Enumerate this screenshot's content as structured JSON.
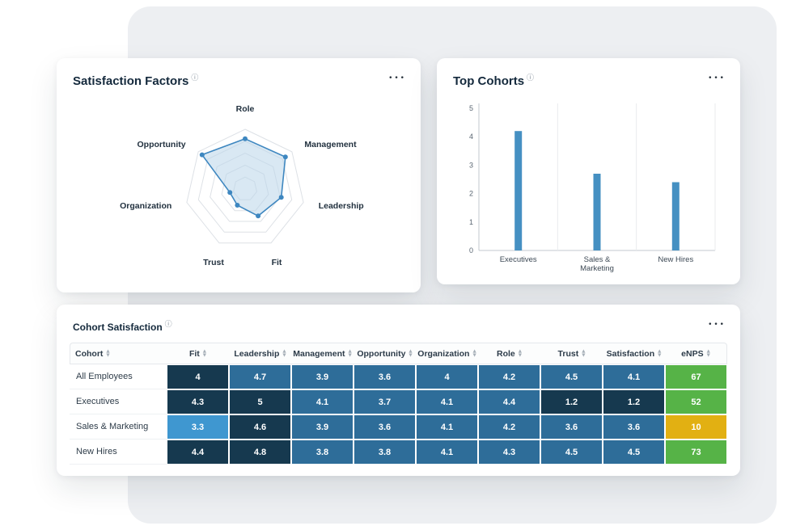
{
  "ui": {
    "info_icon": "ⓘ",
    "menu_icon": "•••",
    "sort_asc": "▲",
    "sort_desc": "▼"
  },
  "colors": {
    "page_bg": "#ffffff",
    "backdrop_bg": "#edeff2",
    "card_bg": "#ffffff",
    "accent_blue": "#4590c2",
    "radar_fill": "#b9d5ea",
    "radar_stroke": "#3e87c0",
    "grid_line": "#dde1e6",
    "cell_dark": "#16394f",
    "cell_mid": "#2e6d99",
    "cell_light": "#3f97d0",
    "cell_green": "#56b347",
    "cell_yellow": "#e2b012",
    "title_text": "#14293c"
  },
  "cards": {
    "satisfaction_factors": {
      "title": "Satisfaction Factors"
    },
    "top_cohorts": {
      "title": "Top Cohorts"
    },
    "cohort_satisfaction": {
      "title": "Cohort Satisfaction"
    }
  },
  "chart_data": [
    {
      "type": "radar",
      "title": "Satisfaction Factors",
      "categories": [
        "Role",
        "Management",
        "Leadership",
        "Fit",
        "Trust",
        "Organization",
        "Opportunity"
      ],
      "values": [
        4.2,
        4.3,
        3.1,
        2.5,
        1.5,
        1.3,
        4.6
      ],
      "max": 5,
      "grid_levels": 5,
      "grid": true,
      "legend": false
    },
    {
      "type": "bar",
      "title": "Top Cohorts",
      "categories": [
        "Executives",
        "Sales & Marketing",
        "New Hires"
      ],
      "values": [
        4.2,
        2.7,
        2.4
      ],
      "ylim": [
        0,
        5
      ],
      "yticks": [
        0,
        1,
        2,
        3,
        4,
        5
      ],
      "xlabel": "",
      "ylabel": "",
      "grid": false,
      "legend": false
    },
    {
      "type": "table",
      "title": "Cohort Satisfaction",
      "columns": [
        "Cohort",
        "Fit",
        "Leadership",
        "Management",
        "Opportunity",
        "Organization",
        "Role",
        "Trust",
        "Satisfaction",
        "eNPS"
      ],
      "rows": [
        {
          "cohort": "All Employees",
          "values": [
            4,
            4.7,
            3.9,
            3.6,
            4,
            4.2,
            4.5,
            4.1,
            67
          ],
          "cell_colors": [
            "dark",
            "mid",
            "mid",
            "mid",
            "mid",
            "mid",
            "mid",
            "mid",
            "green"
          ]
        },
        {
          "cohort": "Executives",
          "values": [
            4.3,
            5,
            4.1,
            3.7,
            4.1,
            4.4,
            1.2,
            1.2,
            52
          ],
          "cell_colors": [
            "dark",
            "dark",
            "mid",
            "mid",
            "mid",
            "mid",
            "dark",
            "dark",
            "green"
          ]
        },
        {
          "cohort": "Sales & Marketing",
          "values": [
            3.3,
            4.6,
            3.9,
            3.6,
            4.1,
            4.2,
            3.6,
            3.6,
            10
          ],
          "cell_colors": [
            "light",
            "dark",
            "mid",
            "mid",
            "mid",
            "mid",
            "mid",
            "mid",
            "yellow"
          ]
        },
        {
          "cohort": "New Hires",
          "values": [
            4.4,
            4.8,
            3.8,
            3.8,
            4.1,
            4.3,
            4.5,
            4.5,
            73
          ],
          "cell_colors": [
            "dark",
            "dark",
            "mid",
            "mid",
            "mid",
            "mid",
            "mid",
            "mid",
            "green"
          ]
        }
      ]
    }
  ]
}
